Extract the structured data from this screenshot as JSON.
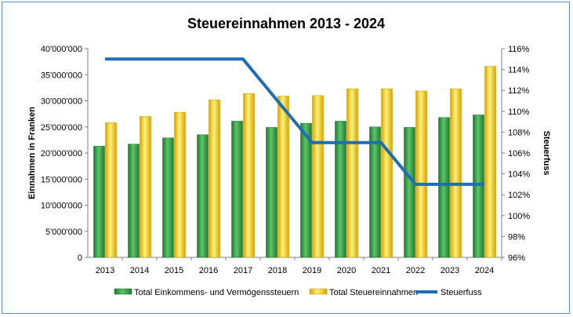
{
  "chart_data": {
    "type": "bar",
    "title": "Steuereinnahmen 2013 - 2024",
    "ylabel": "Einnahmen in Franken",
    "y2label": "Steuerfuss",
    "categories": [
      "2013",
      "2014",
      "2015",
      "2016",
      "2017",
      "2018",
      "2019",
      "2020",
      "2021",
      "2022",
      "2023",
      "2024"
    ],
    "ylim": [
      0,
      40000000
    ],
    "y_ticks": [
      "0",
      "5'000'000",
      "10'000'000",
      "15'000'000",
      "20'000'000",
      "25'000'000",
      "30'000'000",
      "35'000'000",
      "40'000'000"
    ],
    "y2lim": [
      96,
      116
    ],
    "y2_ticks": [
      "96%",
      "98%",
      "100%",
      "102%",
      "104%",
      "106%",
      "108%",
      "110%",
      "112%",
      "114%",
      "116%"
    ],
    "series": [
      {
        "name": "Total Einkommens- und Vermögenssteuern",
        "kind": "bar",
        "color": "#3aa84a",
        "values": [
          21300000,
          21700000,
          22900000,
          23500000,
          26100000,
          24900000,
          25700000,
          26100000,
          25000000,
          24900000,
          26800000,
          27300000
        ]
      },
      {
        "name": "Total Steuereinnahmen",
        "kind": "bar",
        "color": "#f2c400",
        "values": [
          25800000,
          27000000,
          27800000,
          30200000,
          31400000,
          30900000,
          31000000,
          32300000,
          32300000,
          31900000,
          32300000,
          36600000
        ]
      },
      {
        "name": "Steuerfuss",
        "kind": "line",
        "axis": "right",
        "color": "#1f6db2",
        "values": [
          115,
          115,
          115,
          115,
          115,
          111,
          107,
          107,
          107,
          103,
          103,
          103
        ]
      }
    ],
    "legend_position": "bottom",
    "grid": false
  }
}
